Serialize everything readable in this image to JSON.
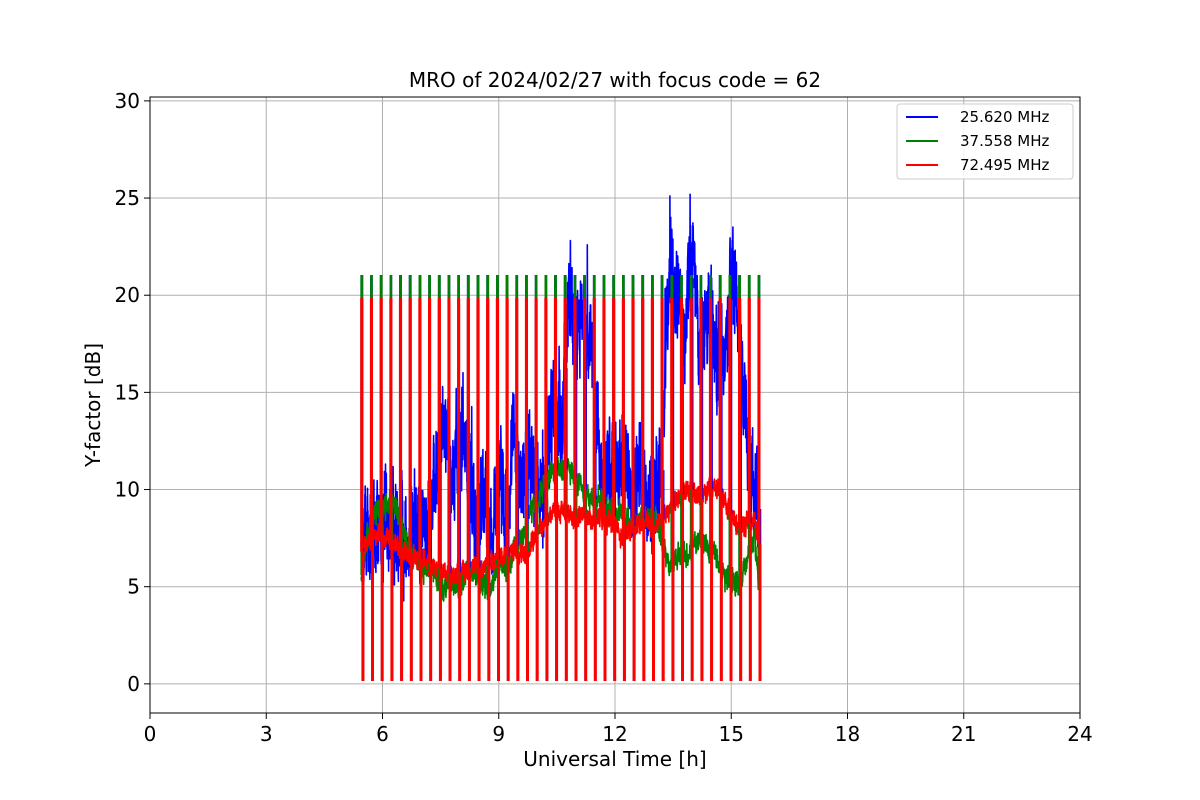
{
  "chart_data": {
    "type": "line",
    "title": "MRO of 2024/02/27 with focus code = 62",
    "xlabel": "Universal Time [h]",
    "ylabel": "Y-factor [dB]",
    "xlim": [
      0,
      24
    ],
    "ylim": [
      -1.5,
      30.2
    ],
    "xticks": [
      0,
      3,
      6,
      9,
      12,
      15,
      18,
      21,
      24
    ],
    "yticks": [
      0,
      5,
      10,
      15,
      20,
      25,
      30
    ],
    "grid": true,
    "legend_position": "top-right",
    "data_range_x": [
      5.45,
      15.7
    ],
    "calibration_period_h": 0.25,
    "calibration_peak": {
      "25.620 MHz": 21.0,
      "37.558 MHz": 21.0,
      "72.495 MHz": 19.8
    },
    "calibration_floor": 0.2,
    "series": [
      {
        "name": "25.620 MHz",
        "color": "#0000ff",
        "x": [
          5.45,
          5.7,
          6.0,
          6.3,
          6.6,
          6.9,
          7.2,
          7.4,
          7.6,
          7.8,
          8.0,
          8.2,
          8.4,
          8.6,
          8.8,
          9.0,
          9.2,
          9.4,
          9.6,
          9.8,
          10.0,
          10.2,
          10.4,
          10.6,
          10.8,
          11.0,
          11.2,
          11.4,
          11.6,
          11.8,
          12.0,
          12.2,
          12.4,
          12.6,
          12.8,
          13.0,
          13.2,
          13.4,
          13.6,
          13.8,
          14.0,
          14.2,
          14.4,
          14.6,
          14.8,
          15.0,
          15.2,
          15.4,
          15.6,
          15.7
        ],
        "y": [
          7.0,
          7.8,
          8.5,
          8.2,
          7.8,
          8.5,
          8.0,
          11.5,
          14.0,
          10.5,
          13.0,
          12.0,
          7.5,
          10.0,
          6.5,
          11.5,
          8.0,
          13.0,
          9.5,
          12.0,
          10.0,
          9.5,
          15.0,
          13.0,
          19.5,
          18.0,
          19.0,
          17.0,
          11.0,
          10.5,
          10.5,
          12.0,
          9.5,
          11.5,
          10.0,
          9.5,
          11.0,
          21.0,
          20.5,
          17.5,
          22.0,
          17.0,
          20.0,
          16.5,
          17.0,
          21.0,
          18.5,
          13.0,
          9.5,
          9.0
        ]
      },
      {
        "name": "37.558 MHz",
        "color": "#008000",
        "x": [
          5.45,
          5.7,
          6.0,
          6.3,
          6.6,
          6.9,
          7.2,
          7.4,
          7.6,
          7.8,
          8.0,
          8.2,
          8.4,
          8.6,
          8.8,
          9.0,
          9.2,
          9.4,
          9.6,
          9.8,
          10.0,
          10.2,
          10.4,
          10.6,
          10.8,
          11.0,
          11.2,
          11.4,
          11.6,
          11.8,
          12.0,
          12.2,
          12.4,
          12.6,
          12.8,
          13.0,
          13.2,
          13.4,
          13.6,
          13.8,
          14.0,
          14.2,
          14.4,
          14.6,
          14.8,
          15.0,
          15.2,
          15.4,
          15.6,
          15.7
        ],
        "y": [
          5.6,
          8.6,
          9.0,
          9.5,
          7.5,
          6.0,
          5.8,
          5.5,
          4.8,
          5.5,
          5.0,
          6.0,
          5.5,
          5.0,
          5.0,
          6.5,
          5.5,
          7.0,
          7.5,
          9.0,
          9.5,
          10.5,
          11.0,
          11.0,
          11.0,
          10.5,
          10.0,
          9.5,
          9.5,
          9.0,
          8.5,
          9.0,
          8.0,
          8.5,
          8.5,
          9.0,
          7.5,
          6.0,
          6.5,
          6.5,
          7.0,
          7.5,
          7.0,
          6.5,
          5.5,
          5.5,
          5.0,
          6.5,
          7.5,
          5.3
        ]
      },
      {
        "name": "72.495 MHz",
        "color": "#ff0000",
        "x": [
          5.45,
          5.7,
          6.0,
          6.3,
          6.6,
          6.9,
          7.2,
          7.4,
          7.6,
          7.8,
          8.0,
          8.2,
          8.4,
          8.6,
          8.8,
          9.0,
          9.2,
          9.4,
          9.6,
          9.8,
          10.0,
          10.2,
          10.4,
          10.6,
          10.8,
          11.0,
          11.2,
          11.4,
          11.6,
          11.8,
          12.0,
          12.2,
          12.4,
          12.6,
          12.8,
          13.0,
          13.2,
          13.4,
          13.6,
          13.8,
          14.0,
          14.2,
          14.4,
          14.6,
          14.8,
          15.0,
          15.2,
          15.4,
          15.6,
          15.7
        ],
        "y": [
          6.8,
          7.5,
          7.8,
          7.2,
          6.8,
          6.5,
          6.2,
          6.0,
          5.8,
          5.6,
          5.8,
          5.8,
          6.0,
          6.0,
          6.2,
          6.5,
          6.6,
          6.8,
          6.6,
          7.0,
          7.8,
          8.2,
          9.0,
          8.8,
          8.8,
          8.5,
          8.8,
          8.5,
          8.8,
          8.5,
          8.2,
          7.5,
          8.0,
          8.2,
          8.5,
          8.0,
          8.5,
          9.0,
          9.5,
          10.0,
          10.0,
          9.5,
          10.0,
          10.2,
          9.5,
          8.5,
          8.0,
          8.2,
          8.5,
          7.2
        ]
      }
    ]
  }
}
